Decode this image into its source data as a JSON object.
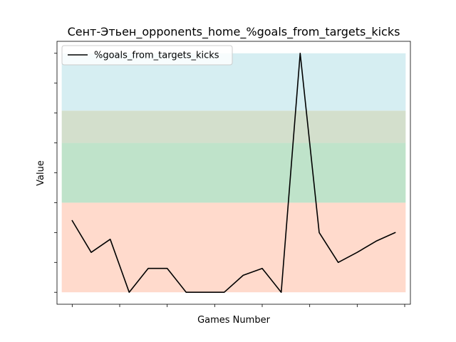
{
  "chart_data": {
    "type": "line",
    "title": "Сент-Этьен_opponents_home_%goals_from_targets_kicks",
    "xlabel": "Games Number",
    "ylabel": "Value",
    "legend_position": "top-left",
    "grid": false,
    "show_tick_labels": false,
    "xlim": [
      -0.8,
      17.8
    ],
    "ylim": [
      -0.05,
      1.05
    ],
    "x_ticks": [
      0,
      2.5,
      5,
      7.5,
      10,
      12.5,
      15,
      17.5
    ],
    "y_ticks": [
      0,
      0.125,
      0.25,
      0.375,
      0.5,
      0.625,
      0.75,
      0.875,
      1.0
    ],
    "bands": [
      {
        "from": 0.0,
        "to": 0.375,
        "color": "#FFDACC"
      },
      {
        "from": 0.375,
        "to": 0.625,
        "color": "#BFE3CA"
      },
      {
        "from": 0.625,
        "to": 0.76,
        "color": "#D3DFCC"
      },
      {
        "from": 0.76,
        "to": 1.0,
        "color": "#D6EEF2"
      }
    ],
    "series": [
      {
        "name": "%goals_from_targets_kicks",
        "color": "#000000",
        "x": [
          0,
          1,
          2,
          3,
          4,
          5,
          6,
          7,
          8,
          9,
          10,
          11,
          12,
          13,
          14,
          15,
          16,
          17
        ],
        "values": [
          0.3,
          0.167,
          0.222,
          0.0,
          0.1,
          0.1,
          0.0,
          0.0,
          0.0,
          0.071,
          0.1,
          0.0,
          1.0,
          0.25,
          0.125,
          0.167,
          0.214,
          0.25
        ]
      }
    ]
  }
}
